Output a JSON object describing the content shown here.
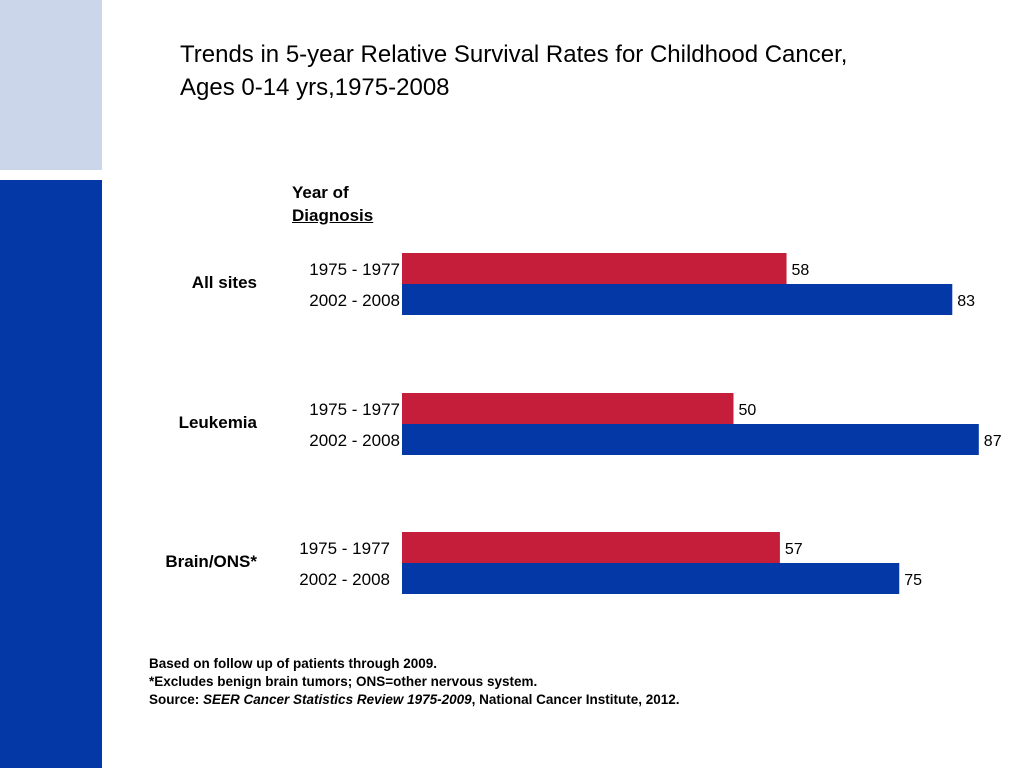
{
  "colors": {
    "early": "#c41e3a",
    "late": "#0438a6",
    "side_light": "#cbd6ea",
    "side_dark": "#0438a6"
  },
  "title": {
    "line1": "Trends in 5-year Relative Survival Rates for Childhood Cancer,",
    "line2": "Ages 0-14 yrs,1975-2008"
  },
  "header": {
    "line1": "Year of",
    "line2": "Diagnosis"
  },
  "footer": {
    "note1": "Based on follow up of patients through 2009.",
    "note2": "*Excludes benign brain tumors; ONS=other nervous system.",
    "source_prefix": "Source: ",
    "source_title": "SEER Cancer Statistics Review 1975-2009",
    "source_suffix": ", National Cancer Institute, 2012."
  },
  "chart_data": {
    "type": "bar",
    "orientation": "horizontal",
    "title": "Trends in 5-year Relative Survival Rates for Childhood Cancer, Ages 0-14 yrs,1975-2008",
    "categories": [
      "All sites",
      "Leukemia",
      "Brain/ONS*"
    ],
    "series": [
      {
        "name": "1975 - 1977",
        "values": [
          58,
          50,
          57
        ]
      },
      {
        "name": "2002 - 2008",
        "values": [
          83,
          87,
          75
        ]
      }
    ],
    "grid": false,
    "legend": "none"
  }
}
